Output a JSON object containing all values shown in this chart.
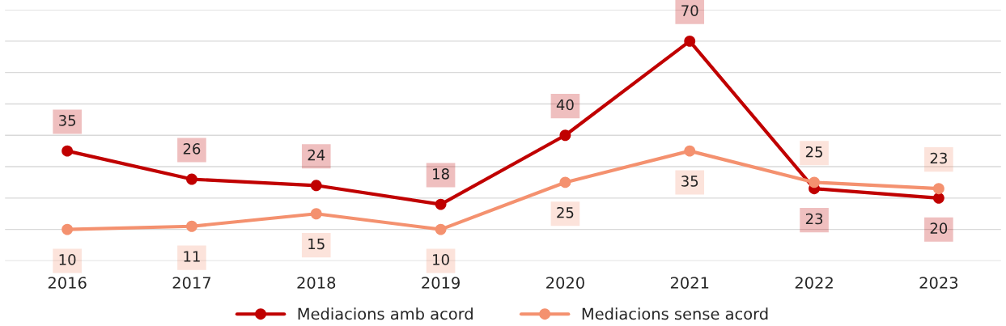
{
  "chart_data": {
    "type": "line",
    "categories": [
      "2016",
      "2017",
      "2018",
      "2019",
      "2020",
      "2021",
      "2022",
      "2023"
    ],
    "series": [
      {
        "name": "Mediacions amb acord",
        "color": "#c00000",
        "values": [
          35,
          26,
          24,
          18,
          40,
          70,
          23,
          20
        ]
      },
      {
        "name": "Mediacions sense acord",
        "color": "#f4916f",
        "values": [
          10,
          11,
          15,
          10,
          25,
          35,
          25,
          23
        ]
      }
    ],
    "ylim": [
      0,
      80
    ],
    "yticks": [
      0,
      10,
      20,
      30,
      40,
      50,
      60,
      70,
      80
    ],
    "tick_labels": "x",
    "grid": "y",
    "legend": "bottom",
    "marker": "circle",
    "line_style": "solid",
    "data_labels": true
  }
}
